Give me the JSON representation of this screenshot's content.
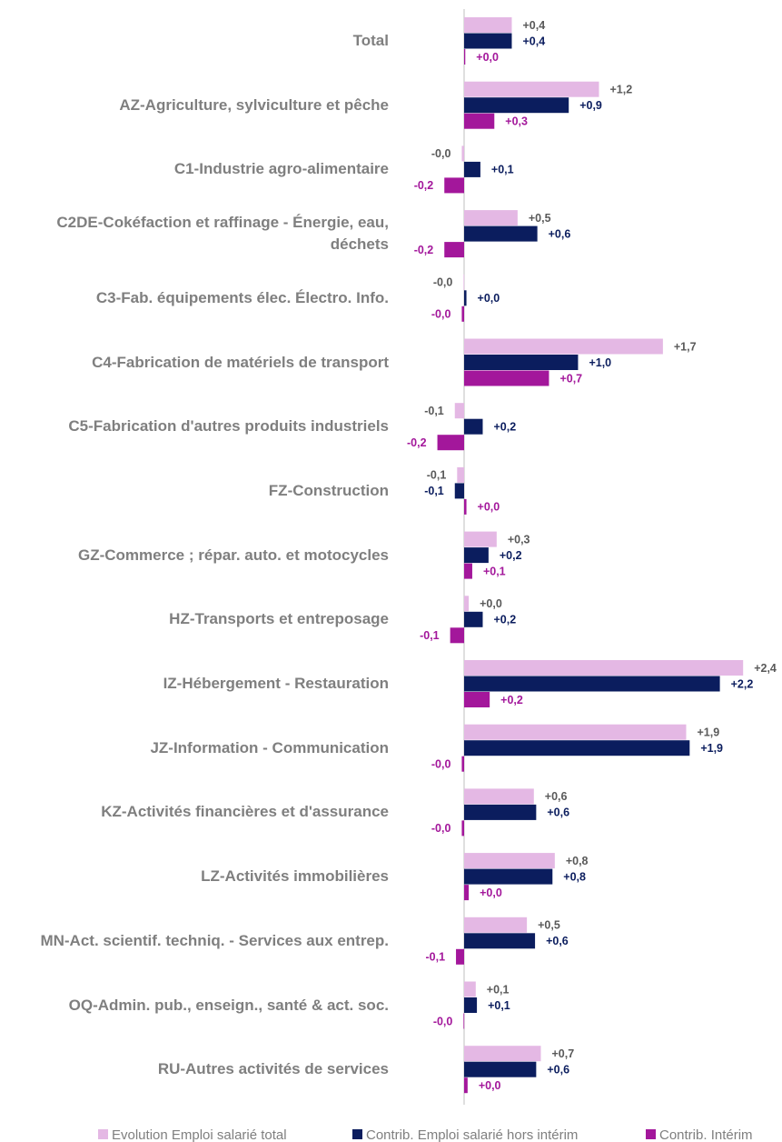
{
  "chart_data": {
    "type": "hbar",
    "categories": [
      "Total",
      "AZ-Agriculture, sylviculture et pêche",
      "C1-Industrie agro-alimentaire",
      "C2DE-Cokéfaction et raffinage - Énergie, eau, déchets",
      "C3-Fab. équipements élec. Électro. Info.",
      "C4-Fabrication de matériels de transport",
      "C5-Fabrication d'autres produits industriels",
      "FZ-Construction",
      "GZ-Commerce ; répar. auto. et  motocycles",
      "HZ-Transports et entreposage",
      "IZ-Hébergement - Restauration",
      "JZ-Information - Communication",
      "KZ-Activités financières et d'assurance",
      "LZ-Activités immobilières",
      "MN-Act. scientif. techniq. - Services aux entrep.",
      "OQ-Admin. pub., enseign., santé & act. soc.",
      "RU-Autres activités de services"
    ],
    "xlim": [
      -0.4,
      2.5
    ],
    "series": [
      {
        "name": "Evolution Emploi salarié total",
        "color": "#e4b8e4",
        "label_color": "#595959",
        "values": [
          0.41,
          1.16,
          -0.02,
          0.46,
          -0.005,
          1.71,
          -0.08,
          -0.06,
          0.28,
          0.04,
          2.4,
          1.91,
          0.6,
          0.78,
          0.54,
          0.1,
          0.66
        ],
        "value_labels": [
          "+0,4",
          "+1,2",
          "-0,0",
          "+0,5",
          "-0,0",
          "+1,7",
          "-0,1",
          "-0,1",
          "+0,3",
          "+0,0",
          "+2,4",
          "+1,9",
          "+0,6",
          "+0,8",
          "+0,5",
          "+0,1",
          "+0,7"
        ]
      },
      {
        "name": "Contrib. Emploi salarié hors intérim",
        "color": "#0b1d5e",
        "label_color": "#0b1d5e",
        "values": [
          0.41,
          0.9,
          0.14,
          0.63,
          0.02,
          0.98,
          0.16,
          -0.08,
          0.21,
          0.16,
          2.2,
          1.94,
          0.62,
          0.76,
          0.61,
          0.11,
          0.62
        ],
        "value_labels": [
          "+0,4",
          "+0,9",
          "+0,1",
          "+0,6",
          "+0,0",
          "+1,0",
          "+0,2",
          "-0,1",
          "+0,2",
          "+0,2",
          "+2,2",
          "+1,9",
          "+0,6",
          "+0,8",
          "+0,6",
          "+0,1",
          "+0,6"
        ]
      },
      {
        "name": "Contrib. Intérim",
        "color": "#a3179b",
        "label_color": "#a3179b",
        "values": [
          0.01,
          0.26,
          -0.17,
          -0.17,
          -0.02,
          0.73,
          -0.23,
          0.02,
          0.07,
          -0.12,
          0.22,
          -0.02,
          -0.02,
          0.04,
          -0.07,
          -0.005,
          0.03
        ],
        "value_labels": [
          "+0,0",
          "+0,3",
          "-0,2",
          "-0,2",
          "-0,0",
          "+0,7",
          "-0,2",
          "+0,0",
          "+0,1",
          "-0,1",
          "+0,2",
          "-0,0",
          "-0,0",
          "+0,0",
          "-0,1",
          "-0,0",
          "+0,0"
        ]
      }
    ]
  }
}
